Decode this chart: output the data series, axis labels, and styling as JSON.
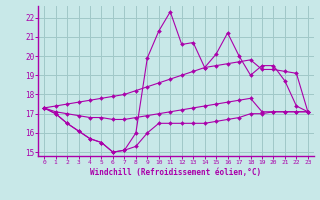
{
  "xlabel": "Windchill (Refroidissement éolien,°C)",
  "bg_color": "#c8e8e8",
  "grid_color": "#a0c8c8",
  "line_color": "#aa00aa",
  "xlim": [
    -0.5,
    23.5
  ],
  "ylim": [
    14.8,
    22.6
  ],
  "xticks": [
    0,
    1,
    2,
    3,
    4,
    5,
    6,
    7,
    8,
    9,
    10,
    11,
    12,
    13,
    14,
    15,
    16,
    17,
    18,
    19,
    20,
    21,
    22,
    23
  ],
  "yticks": [
    15,
    16,
    17,
    18,
    19,
    20,
    21,
    22
  ],
  "line_jagged_x": [
    0,
    1,
    2,
    3,
    4,
    5,
    6,
    7,
    8,
    9,
    10,
    11,
    12,
    13,
    14,
    15,
    16,
    17,
    18,
    19,
    20,
    21,
    22,
    23
  ],
  "line_jagged_y": [
    17.3,
    17.0,
    16.5,
    16.1,
    15.7,
    15.5,
    15.0,
    15.1,
    16.0,
    19.9,
    21.3,
    22.3,
    20.6,
    20.7,
    19.4,
    20.1,
    21.2,
    20.0,
    19.0,
    19.5,
    19.5,
    18.7,
    17.4,
    17.1
  ],
  "line_upper_x": [
    0,
    1,
    2,
    3,
    4,
    5,
    6,
    7,
    8,
    9,
    10,
    11,
    12,
    13,
    14,
    15,
    16,
    17,
    18,
    19,
    20,
    21,
    22,
    23
  ],
  "line_upper_y": [
    17.3,
    17.4,
    17.5,
    17.6,
    17.7,
    17.8,
    17.9,
    18.0,
    18.2,
    18.4,
    18.6,
    18.8,
    19.0,
    19.2,
    19.4,
    19.5,
    19.6,
    19.7,
    19.8,
    19.3,
    19.3,
    19.2,
    19.1,
    17.1
  ],
  "line_lower_x": [
    0,
    1,
    2,
    3,
    4,
    5,
    6,
    7,
    8,
    9,
    10,
    11,
    12,
    13,
    14,
    15,
    16,
    17,
    18,
    19,
    20,
    21,
    22,
    23
  ],
  "line_lower_y": [
    17.3,
    17.1,
    17.0,
    16.9,
    16.8,
    16.8,
    16.7,
    16.7,
    16.8,
    16.9,
    17.0,
    17.1,
    17.2,
    17.3,
    17.4,
    17.5,
    17.6,
    17.7,
    17.8,
    17.1,
    17.1,
    17.1,
    17.1,
    17.1
  ],
  "line_bottom_x": [
    0,
    1,
    2,
    3,
    4,
    5,
    6,
    7,
    8,
    9,
    10,
    11,
    12,
    13,
    14,
    15,
    16,
    17,
    18,
    19,
    20,
    21,
    22,
    23
  ],
  "line_bottom_y": [
    17.3,
    17.0,
    16.5,
    16.1,
    15.7,
    15.5,
    15.0,
    15.1,
    15.3,
    16.0,
    16.5,
    16.5,
    16.5,
    16.5,
    16.5,
    16.6,
    16.7,
    16.8,
    17.0,
    17.0,
    17.1,
    17.1,
    17.1,
    17.1
  ]
}
